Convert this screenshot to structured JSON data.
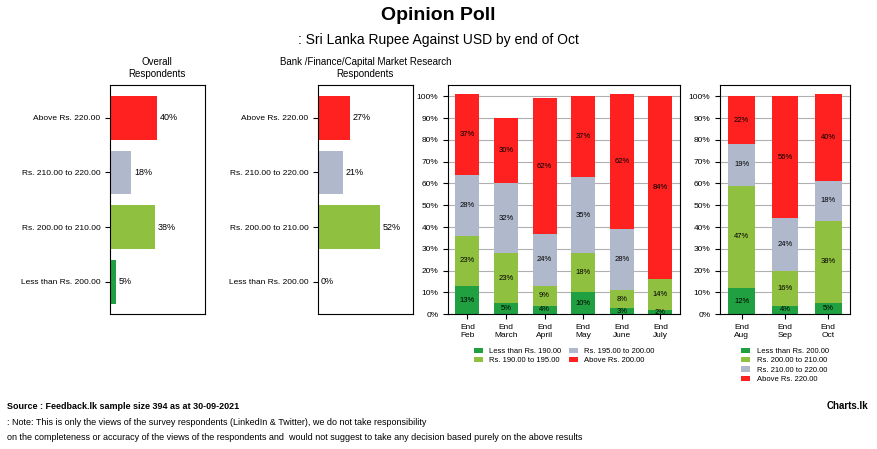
{
  "title": "Opinion Poll",
  "subtitle": ": Sri Lanka Rupee Against USD by end of Oct",
  "annotations": [
    "Source :",
    "Feedback.lk sample size 394 as at 30-09-2021",
    ": Note:",
    "This is only the views of the survey respondents (LinkedIn & Twitter), we do not take responsibility",
    "on the completeness or accuracy of the views of the respondents and  would not suggest to take any decision based purely on the above results",
    "Charts.lk"
  ],
  "chart_data": [
    {
      "type": "bar",
      "orientation": "horizontal",
      "title": "Overall\nRespondents",
      "categories": [
        "Above Rs. 220.00",
        "Rs. 210.00 to 220.00",
        "Rs. 200.00 to 210.00",
        "Less than Rs. 200.00"
      ],
      "values": [
        40,
        18,
        38,
        5
      ],
      "value_labels": [
        "40%",
        "18%",
        "38%",
        "5%"
      ],
      "colors": [
        "#ff2020",
        "#b0b8cc",
        "#90c040",
        "#20a040"
      ],
      "xlim": [
        0,
        80
      ],
      "data_labels": true,
      "tick_labels": "y",
      "grid": false
    },
    {
      "type": "bar",
      "orientation": "horizontal",
      "title": "Bank /Finance/Capital Market Research\nRespondents",
      "categories": [
        "Above Rs. 220.00",
        "Rs. 210.00 to 220.00",
        "Rs. 200.00 to 210.00",
        "Less than Rs. 200.00"
      ],
      "values": [
        27,
        21,
        52,
        0
      ],
      "value_labels": [
        "27%",
        "21%",
        "52%",
        "0%"
      ],
      "colors": [
        "#ff2020",
        "#b0b8cc",
        "#90c040",
        "#20a040"
      ],
      "xlim": [
        0,
        80
      ],
      "data_labels": true,
      "tick_labels": "y",
      "grid": false
    },
    {
      "type": "bar",
      "stacked": true,
      "categories": [
        "End Feb",
        "End March",
        "End April",
        "End May",
        "End June",
        "End July"
      ],
      "series": [
        {
          "name": "Less than Rs. 190.00",
          "color": "#20a040",
          "values": [
            13,
            5,
            4,
            10,
            3,
            2
          ],
          "value_labels": [
            "13%",
            "5%",
            "4%",
            "10%",
            "3%",
            "2%"
          ]
        },
        {
          "name": "Rs. 190.00 to 195.00",
          "color": "#90c040",
          "values": [
            23,
            23,
            9,
            18,
            8,
            14
          ],
          "value_labels": [
            "23%",
            "23%",
            "9%",
            "18%",
            "8%",
            "14%"
          ]
        },
        {
          "name": "Rs. 195.00 to 200.00",
          "color": "#b0b8cc",
          "values": [
            28,
            32,
            24,
            35,
            28,
            0
          ],
          "value_labels": [
            "28%",
            "32%",
            "24%",
            "35%",
            "28%",
            null
          ]
        },
        {
          "name": "Above Rs. 200.00",
          "color": "#ff2020",
          "values": [
            37,
            30,
            62,
            37,
            62,
            84
          ],
          "value_labels": [
            "37%",
            "30%",
            "62%",
            "37%",
            "62%",
            "84%"
          ]
        }
      ],
      "ylim": [
        0,
        105
      ],
      "yticks": [
        {
          "value": 0,
          "label": "0%"
        },
        {
          "value": 10,
          "label": "10%"
        },
        {
          "value": 20,
          "label": "20%"
        },
        {
          "value": 30,
          "label": "30%"
        },
        {
          "value": 40,
          "label": "40%"
        },
        {
          "value": 50,
          "label": "50%"
        },
        {
          "value": 60,
          "label": "60%"
        },
        {
          "value": 70,
          "label": "70%"
        },
        {
          "value": 80,
          "label": "80%"
        },
        {
          "value": 90,
          "label": "90%"
        },
        {
          "value": 100,
          "label": "100%"
        }
      ],
      "data_labels": true,
      "grid": true,
      "legend": "upper center"
    },
    {
      "type": "bar",
      "stacked": true,
      "categories": [
        "End Aug",
        "End Sep",
        "End Oct"
      ],
      "series": [
        {
          "name": "Less than Rs. 200.00",
          "color": "#20a040",
          "values": [
            12,
            4,
            5
          ],
          "value_labels": [
            "12%",
            "4%",
            "5%"
          ]
        },
        {
          "name": "Rs. 200.00 to 210.00",
          "color": "#90c040",
          "values": [
            47,
            16,
            38
          ],
          "value_labels": [
            "47%",
            "16%",
            "38%"
          ]
        },
        {
          "name": "Rs. 210.00 to 220.00",
          "color": "#b0b8cc",
          "values": [
            19,
            24,
            18
          ],
          "value_labels": [
            "19%",
            "24%",
            "18%"
          ]
        },
        {
          "name": "Above Rs. 220.00",
          "color": "#ff2020",
          "values": [
            22,
            56,
            40
          ],
          "value_labels": [
            "22%",
            "56%",
            "40%"
          ]
        }
      ],
      "ylim": [
        0,
        105
      ],
      "yticks": [
        {
          "value": 0,
          "label": "0%"
        },
        {
          "value": 10,
          "label": "10%"
        },
        {
          "value": 20,
          "label": "20%"
        },
        {
          "value": 30,
          "label": "30%"
        },
        {
          "value": 40,
          "label": "40%"
        },
        {
          "value": 50,
          "label": "50%"
        },
        {
          "value": 60,
          "label": "60%"
        },
        {
          "value": 70,
          "label": "70%"
        },
        {
          "value": 80,
          "label": "80%"
        },
        {
          "value": 90,
          "label": "90%"
        },
        {
          "value": 100,
          "label": "100%"
        }
      ],
      "data_labels": true,
      "grid": true,
      "legend": "upper center"
    }
  ]
}
